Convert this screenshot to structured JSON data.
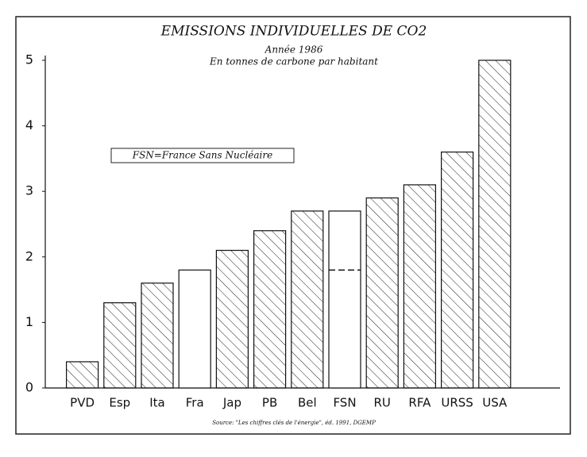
{
  "chart_data": {
    "type": "bar",
    "title": "EMISSIONS INDIVIDUELLES DE CO2",
    "subtitle": [
      "Année 1986",
      "En tonnes de carbone par habitant"
    ],
    "annotation": "FSN=France Sans Nucléaire",
    "source": "Source: \"Les chiffres clés de l'énergie\", éd. 1991, DGEMP",
    "categories": [
      "PVD",
      "Esp",
      "Ita",
      "Fra",
      "Jap",
      "PB",
      "Bel",
      "FSN",
      "RU",
      "RFA",
      "URSS",
      "USA"
    ],
    "values": [
      0.4,
      1.3,
      1.6,
      1.8,
      2.1,
      2.4,
      2.7,
      2.7,
      2.9,
      3.1,
      3.6,
      5.0
    ],
    "hatched": [
      true,
      true,
      true,
      false,
      true,
      true,
      true,
      false,
      true,
      true,
      true,
      true
    ],
    "reference_values": [
      null,
      null,
      null,
      null,
      null,
      null,
      null,
      1.8,
      null,
      null,
      null,
      null
    ],
    "color": "#111111",
    "ylim": [
      0,
      5
    ],
    "yticks": [
      0,
      1,
      2,
      3,
      4,
      5
    ],
    "grid": false
  }
}
